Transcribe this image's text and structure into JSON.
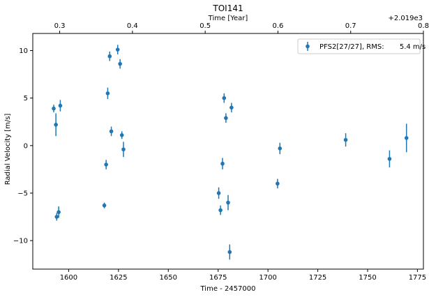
{
  "chart_data": {
    "type": "scatter",
    "title": "TOI141",
    "xlabel": "Time - 2457000",
    "ylabel": "Radial Velocity [m/s]",
    "top_xlabel": "Time [Year]",
    "top_offset_label": "+2.019e3",
    "xlim": [
      1582,
      1778
    ],
    "ylim": [
      -13,
      11.8
    ],
    "x_ticks": [
      1600,
      1625,
      1650,
      1675,
      1700,
      1725,
      1750,
      1775
    ],
    "x_tick_labels": [
      "1600",
      "1625",
      "1650",
      "1675",
      "1700",
      "1725",
      "1750",
      "1775"
    ],
    "y_ticks": [
      -10,
      -5,
      0,
      5,
      10
    ],
    "y_tick_labels": [
      "−10",
      "−5",
      "0",
      "5",
      "10"
    ],
    "top_ticks": [
      1595.5,
      1632.0,
      1668.5,
      1705.0,
      1741.5,
      1778.0
    ],
    "top_tick_labels": [
      "0.3",
      "0.4",
      "0.5",
      "0.6",
      "0.7",
      "0.8"
    ],
    "grid": false,
    "legend_position": "top-right",
    "color": "#1f77b4",
    "series": [
      {
        "name": "PFS2[27/27], RMS:       5.4 m/s",
        "points": [
          {
            "x": 1592.5,
            "y": 3.9,
            "err": 0.4
          },
          {
            "x": 1593.6,
            "y": 2.2,
            "err": 1.2
          },
          {
            "x": 1594.0,
            "y": -7.5,
            "err": 0.4
          },
          {
            "x": 1595.0,
            "y": -7.0,
            "err": 0.6
          },
          {
            "x": 1595.8,
            "y": 4.2,
            "err": 0.6
          },
          {
            "x": 1617.9,
            "y": -6.3,
            "err": 0.3
          },
          {
            "x": 1618.8,
            "y": -2.0,
            "err": 0.5
          },
          {
            "x": 1619.6,
            "y": 5.5,
            "err": 0.6
          },
          {
            "x": 1620.6,
            "y": 9.4,
            "err": 0.5
          },
          {
            "x": 1621.4,
            "y": 1.5,
            "err": 0.5
          },
          {
            "x": 1624.6,
            "y": 10.1,
            "err": 0.5
          },
          {
            "x": 1625.8,
            "y": 8.6,
            "err": 0.5
          },
          {
            "x": 1626.7,
            "y": 1.1,
            "err": 0.4
          },
          {
            "x": 1627.5,
            "y": -0.4,
            "err": 0.8
          },
          {
            "x": 1675.3,
            "y": -5.0,
            "err": 0.6
          },
          {
            "x": 1676.2,
            "y": -6.8,
            "err": 0.5
          },
          {
            "x": 1677.2,
            "y": -1.9,
            "err": 0.6
          },
          {
            "x": 1678.0,
            "y": 5.0,
            "err": 0.5
          },
          {
            "x": 1678.9,
            "y": 2.9,
            "err": 0.5
          },
          {
            "x": 1680.0,
            "y": -6.0,
            "err": 0.8
          },
          {
            "x": 1680.8,
            "y": -11.2,
            "err": 0.8
          },
          {
            "x": 1681.7,
            "y": 4.0,
            "err": 0.5
          },
          {
            "x": 1704.8,
            "y": -4.0,
            "err": 0.5
          },
          {
            "x": 1706.0,
            "y": -0.3,
            "err": 0.6
          },
          {
            "x": 1739.0,
            "y": 0.6,
            "err": 0.7
          },
          {
            "x": 1761.0,
            "y": -1.4,
            "err": 0.9
          },
          {
            "x": 1769.5,
            "y": 0.8,
            "err": 1.5
          }
        ]
      }
    ]
  }
}
